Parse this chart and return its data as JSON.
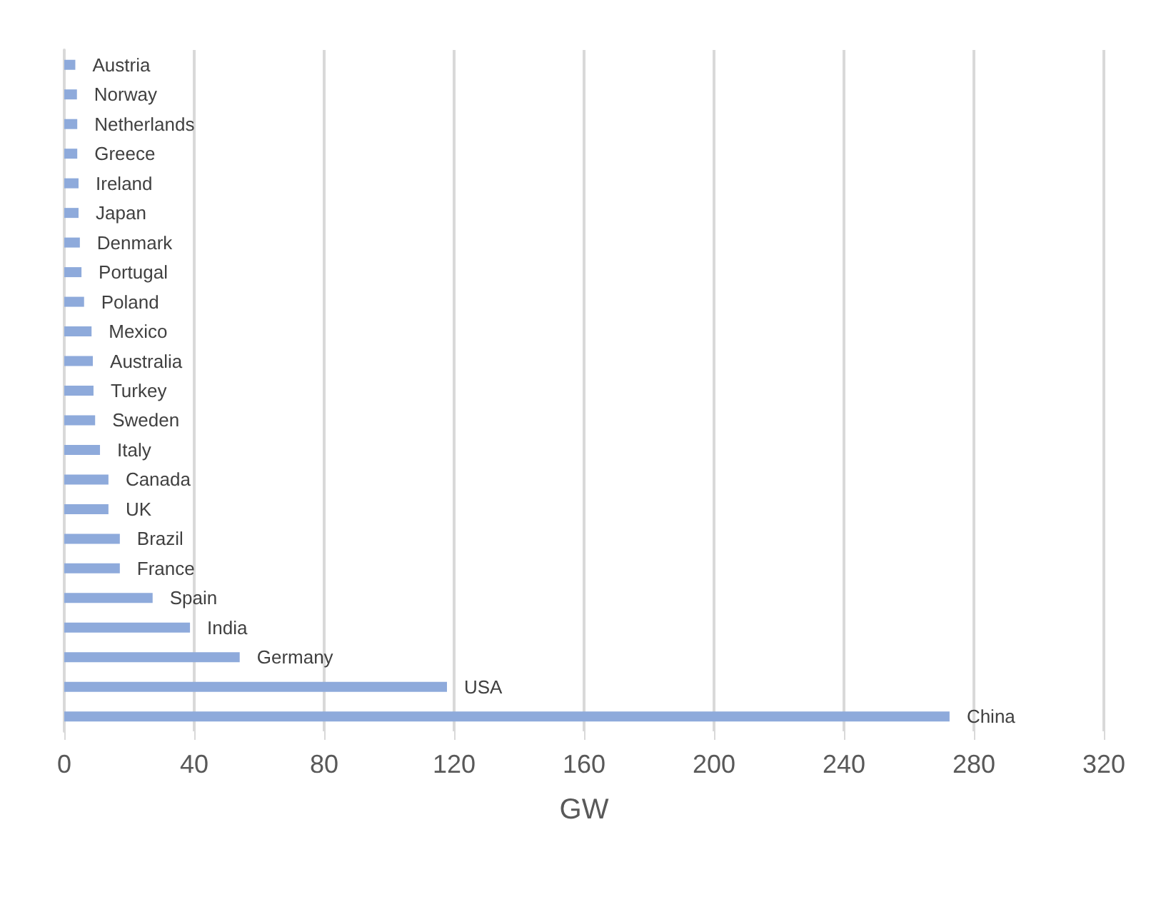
{
  "chart_data": {
    "type": "bar",
    "orientation": "horizontal",
    "xlabel": "GW",
    "categories": [
      "Austria",
      "Norway",
      "Netherlands",
      "Greece",
      "Ireland",
      "Japan",
      "Denmark",
      "Portugal",
      "Poland",
      "Mexico",
      "Australia",
      "Turkey",
      "Sweden",
      "Italy",
      "Canada",
      "UK",
      "Brazil",
      "France",
      "Spain",
      "India",
      "Germany",
      "USA",
      "China"
    ],
    "values": [
      3.4,
      3.9,
      4,
      4,
      4.4,
      4.4,
      4.8,
      5.3,
      6.1,
      8.4,
      8.8,
      9,
      9.5,
      11,
      13.6,
      13.6,
      17.1,
      17.1,
      27.2,
      38.7,
      54,
      117.8,
      272.5
    ],
    "color": "#8eaadb",
    "xlim": [
      0,
      320
    ],
    "xticks": [
      0,
      40,
      80,
      120,
      160,
      200,
      240,
      280,
      320
    ],
    "grid": "x",
    "tick_labels": "x"
  }
}
